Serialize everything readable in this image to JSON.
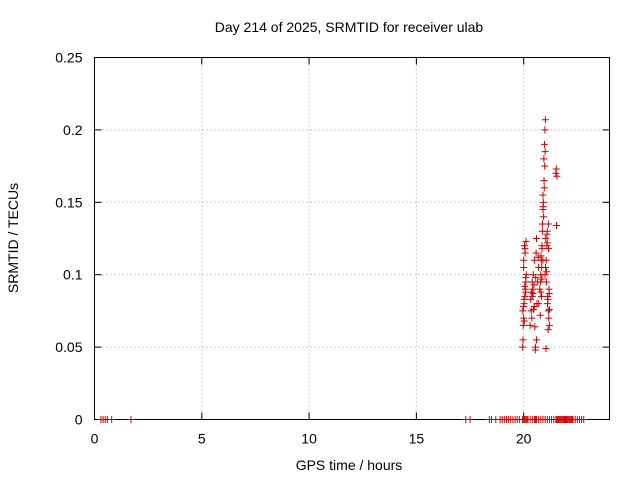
{
  "chart_data": {
    "type": "scatter",
    "title": "Day 214 of 2025, SRMTID for receiver ulab",
    "xlabel": "GPS time / hours",
    "ylabel": "SRMTID / TECUs",
    "xlim": [
      0,
      24
    ],
    "ylim": [
      0,
      0.25
    ],
    "xticks": [
      0,
      5,
      10,
      15,
      20
    ],
    "xtick_labels": [
      "0",
      "5",
      "10",
      "15",
      "20"
    ],
    "yticks": [
      0,
      0.05,
      0.1,
      0.15,
      0.2,
      0.25
    ],
    "ytick_labels": [
      "0",
      "0.05",
      "0.1",
      "0.15",
      "0.2",
      "0.25"
    ],
    "grid": true,
    "marker": "+",
    "color": "#cc0000",
    "series": [
      {
        "name": "SRMTID",
        "x": [
          0.3,
          0.4,
          0.5,
          0.6,
          0.8,
          1.7,
          17.3,
          17.5,
          18.4,
          18.5,
          18.7,
          18.9,
          19.0,
          19.1,
          19.2,
          19.3,
          19.4,
          19.5,
          19.6,
          19.7,
          19.8,
          19.95,
          20.0,
          20.05,
          20.1,
          20.15,
          20.2,
          20.3,
          20.4,
          20.5,
          20.55,
          20.6,
          20.7,
          20.8,
          20.9,
          21.0,
          21.1,
          21.2,
          21.3,
          21.4,
          21.5,
          21.55,
          21.6,
          21.65,
          21.7,
          21.75,
          21.8,
          21.85,
          21.9,
          21.95,
          22.0,
          22.05,
          22.1,
          22.15,
          22.2,
          22.25,
          22.3,
          22.4,
          22.5,
          22.6,
          22.7,
          22.8,
          19.95,
          19.98,
          20.0,
          20.02,
          20.05,
          20.08,
          20.1,
          20.12,
          19.96,
          20.0,
          20.04,
          20.07,
          19.97,
          20.03,
          20.09,
          20.0,
          20.06,
          20.11,
          19.99,
          20.02,
          20.05,
          20.1,
          20.3,
          20.35,
          20.4,
          20.42,
          20.45,
          20.5,
          20.55,
          20.6,
          20.62,
          20.65,
          20.7,
          20.38,
          20.44,
          20.48,
          20.52,
          20.58,
          20.33,
          20.46,
          20.56,
          20.68,
          20.4,
          20.5,
          20.6,
          20.36,
          20.54,
          20.7,
          20.75,
          20.8,
          20.82,
          20.85,
          20.88,
          20.9,
          20.92,
          20.95,
          20.98,
          21.0,
          20.78,
          20.84,
          20.87,
          20.93,
          20.96,
          20.81,
          20.86,
          20.9,
          20.94,
          20.97,
          20.8,
          20.85,
          20.91,
          20.99,
          20.77,
          20.83,
          20.89,
          21.0,
          21.02,
          21.05,
          21.08,
          21.1,
          21.12,
          21.15,
          21.18,
          21.2,
          21.03,
          21.07,
          21.11,
          21.14,
          21.17,
          21.04,
          21.09,
          21.13,
          21.16,
          21.19,
          21.06,
          21.1,
          21.15,
          21.2,
          21.01,
          21.5,
          21.55,
          21.52,
          21.53
        ],
        "y": [
          0,
          0,
          0,
          0,
          0,
          0,
          0,
          0,
          0,
          0,
          0,
          0,
          0,
          0,
          0,
          0,
          0,
          0,
          0,
          0,
          0,
          0,
          0,
          0,
          0,
          0,
          0,
          0,
          0,
          0,
          0,
          0,
          0,
          0,
          0,
          0,
          0,
          0,
          0,
          0,
          0,
          0,
          0,
          0,
          0,
          0,
          0,
          0,
          0,
          0,
          0,
          0,
          0,
          0,
          0,
          0,
          0,
          0,
          0,
          0,
          0,
          0,
          0.05,
          0.065,
          0.07,
          0.08,
          0.085,
          0.09,
          0.095,
          0.1,
          0.075,
          0.11,
          0.12,
          0.115,
          0.055,
          0.068,
          0.088,
          0.105,
          0.118,
          0.123,
          0.078,
          0.083,
          0.092,
          0.098,
          0.065,
          0.075,
          0.085,
          0.09,
          0.1,
          0.11,
          0.05,
          0.055,
          0.08,
          0.095,
          0.105,
          0.07,
          0.087,
          0.093,
          0.064,
          0.115,
          0.083,
          0.076,
          0.098,
          0.112,
          0.095,
          0.078,
          0.125,
          0.088,
          0.048,
          0.08,
          0.09,
          0.1,
          0.11,
          0.12,
          0.135,
          0.145,
          0.15,
          0.165,
          0.175,
          0.185,
          0.095,
          0.105,
          0.13,
          0.14,
          0.16,
          0.113,
          0.118,
          0.155,
          0.18,
          0.19,
          0.088,
          0.097,
          0.147,
          0.2,
          0.072,
          0.085,
          0.11,
          0.1,
          0.105,
          0.11,
          0.12,
          0.13,
          0.085,
          0.075,
          0.09,
          0.065,
          0.125,
          0.102,
          0.08,
          0.062,
          0.07,
          0.049,
          0.128,
          0.083,
          0.118,
          0.087,
          0.095,
          0.122,
          0.135,
          0.076,
          0.207,
          0.17,
          0.168,
          0.173,
          0.134
        ]
      }
    ]
  }
}
